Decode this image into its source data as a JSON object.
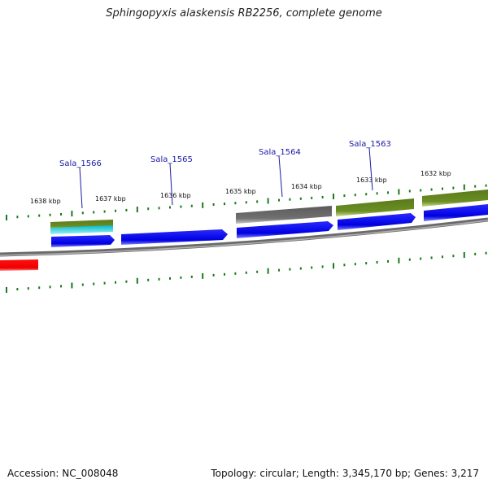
{
  "title": "Sphingopyxis alaskensis RB2256, complete genome",
  "footer": {
    "accession": "Accession: NC_008048",
    "summary": "Topology: circular; Length: 3,345,170 bp; Genes: 3,217"
  },
  "ruler": {
    "ticks": [
      "1638 kbp",
      "1637 kbp",
      "1636 kbp",
      "1635 kbp",
      "1634 kbp",
      "1633 kbp",
      "1632 kbp"
    ]
  },
  "gene_labels": [
    "Sala_1566",
    "Sala_1565",
    "Sala_1564",
    "Sala_1563"
  ],
  "colors": {
    "cds": "#0000ee",
    "gene_green": "#6b8e23",
    "gene_cyan": "#00c8d8",
    "gene_gray": "#6e6e6e",
    "backbone": "#808080",
    "red_feature": "#ee0000",
    "tick": "#1a7a1a",
    "label_blue": "#1a1aa6"
  }
}
